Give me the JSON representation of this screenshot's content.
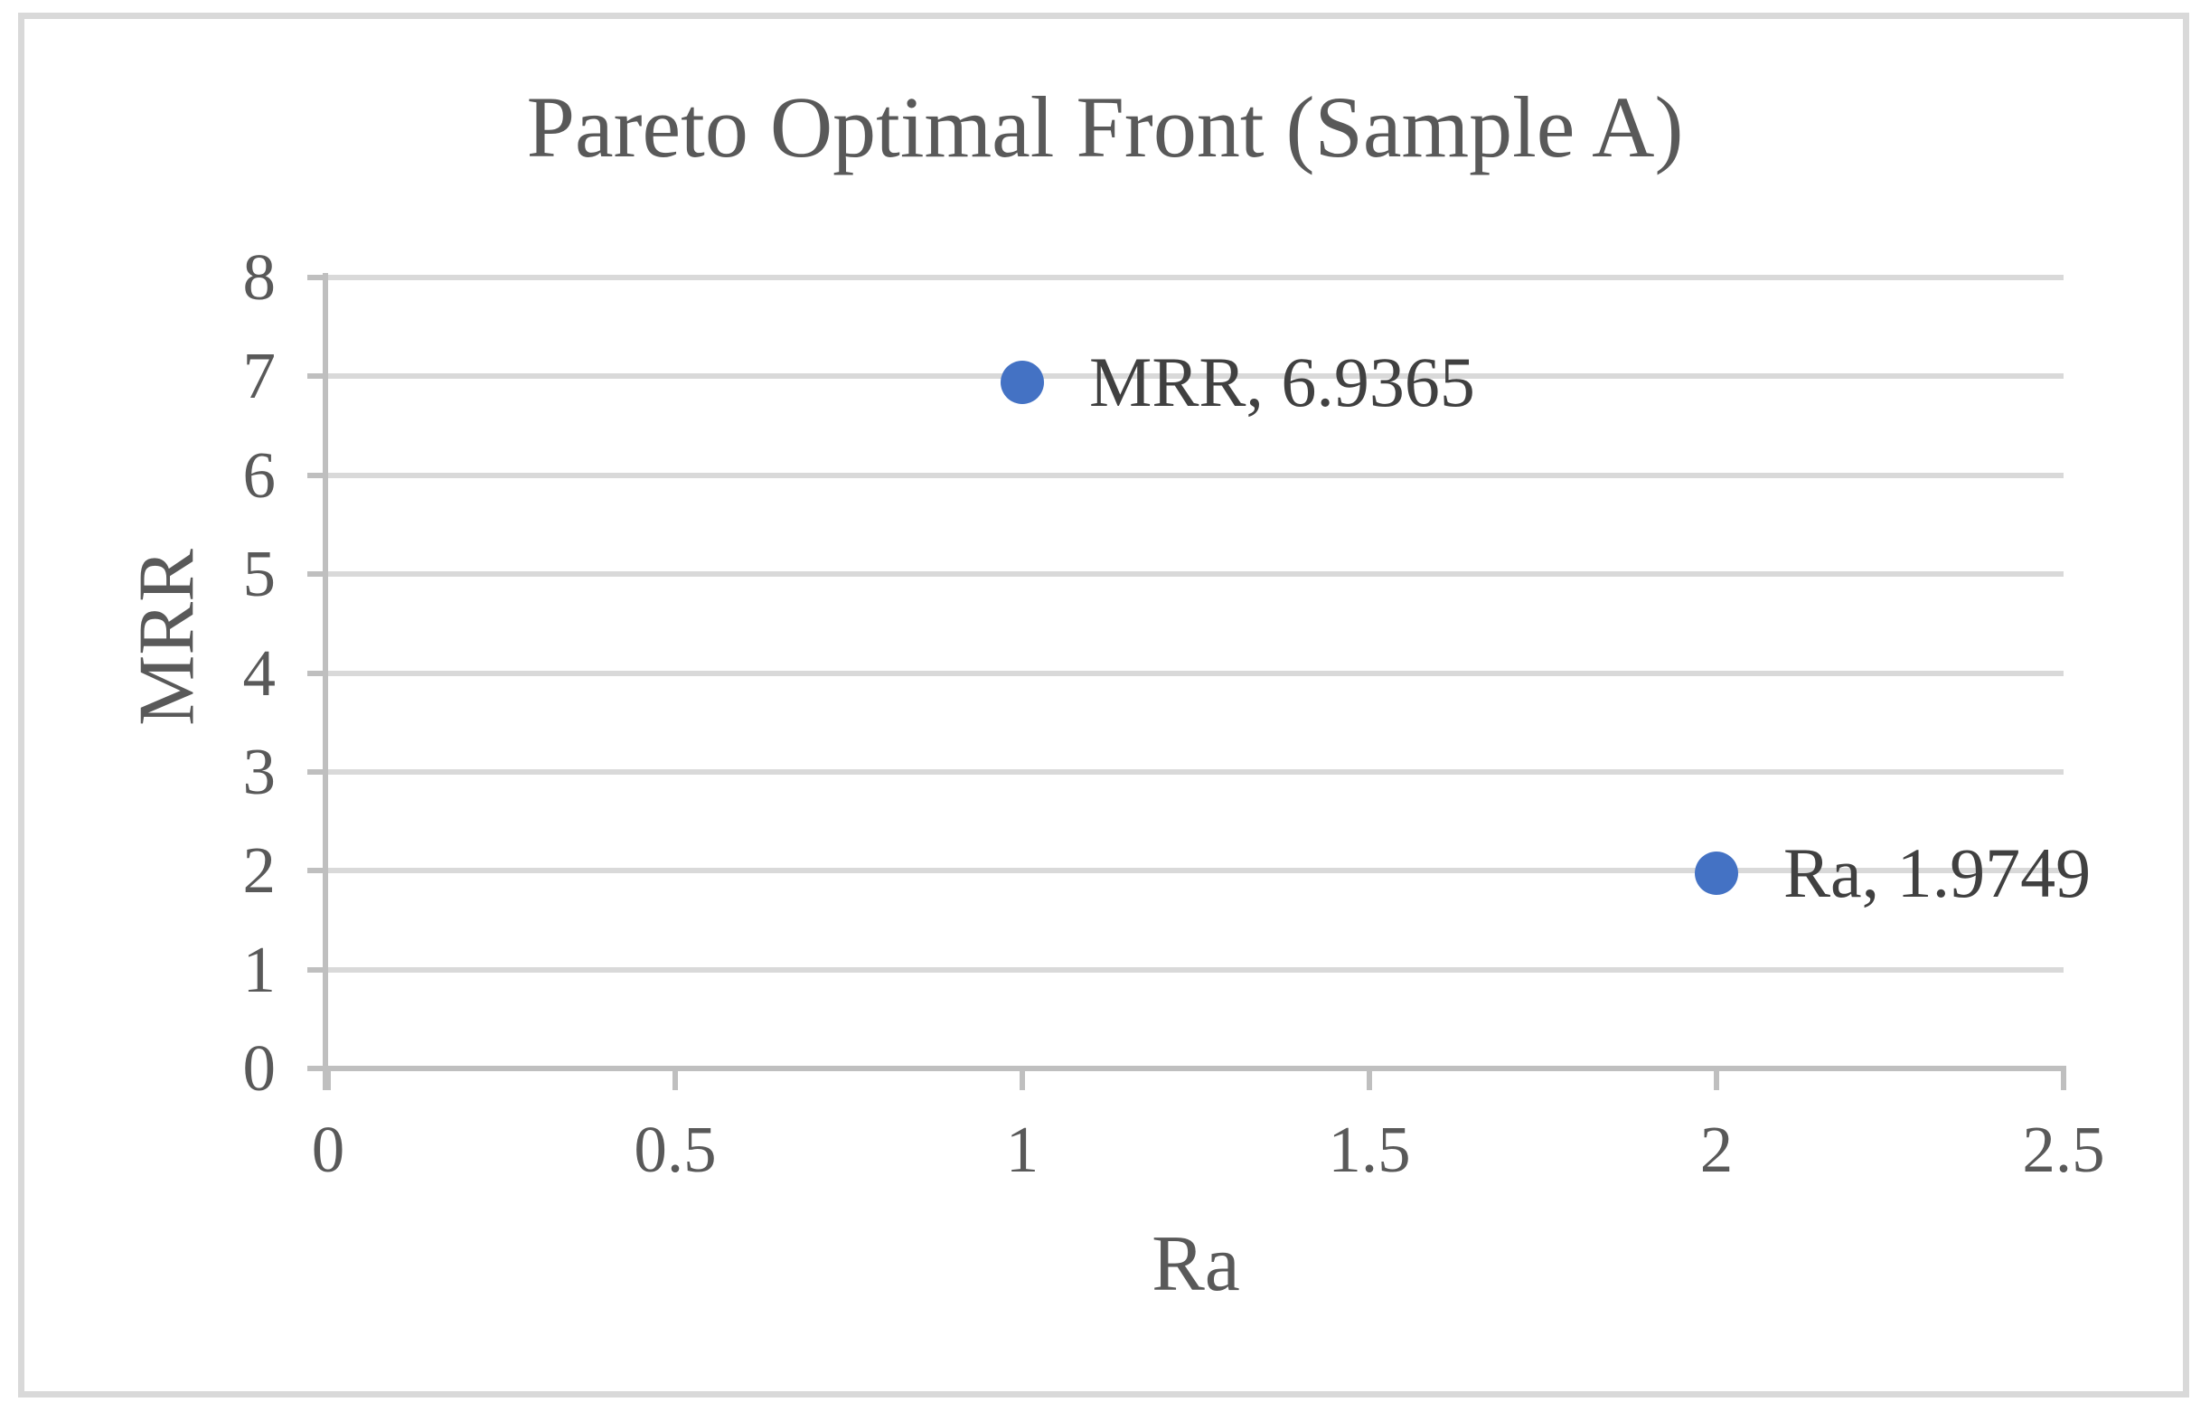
{
  "figure": {
    "background": "#ffffff",
    "border_color": "#d9d9d9"
  },
  "chart_data": {
    "type": "scatter",
    "title": "Pareto Optimal Front (Sample A)",
    "xlabel": "Ra",
    "ylabel": "MRR",
    "xlim": [
      0,
      2.5
    ],
    "ylim": [
      0,
      8
    ],
    "xticks": [
      "0",
      "0.5",
      "1",
      "1.5",
      "2",
      "2.5"
    ],
    "yticks": [
      "0",
      "1",
      "2",
      "3",
      "4",
      "5",
      "6",
      "7",
      "8"
    ],
    "grid": "horizontal-only",
    "legend": "none",
    "marker_color": "#4472c4",
    "points": [
      {
        "name": "MRR",
        "x": 1,
        "y": 6.9365,
        "label": "MRR, 6.9365"
      },
      {
        "name": "Ra",
        "x": 2,
        "y": 1.9749,
        "label": "Ra, 1.9749"
      }
    ],
    "colors": {
      "title_text": "#595959",
      "tick_text": "#595959",
      "data_label_text": "#404040",
      "gridline": "#d9d9d9",
      "axis_line": "#bfbfbf",
      "marker": "#4472c4"
    }
  }
}
